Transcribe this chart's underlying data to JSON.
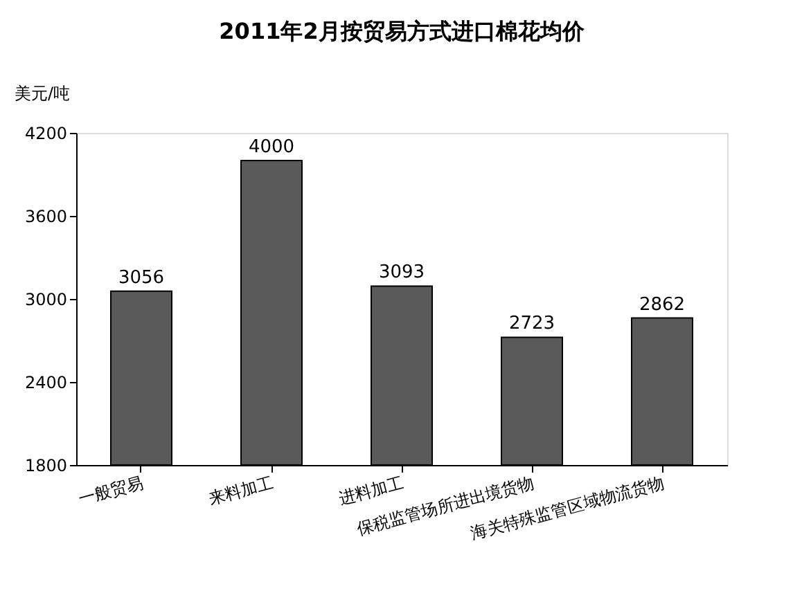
{
  "chart_data": {
    "type": "bar",
    "title": "2011年2月按贸易方式进口棉花均价",
    "ylabel": "美元/吨",
    "categories": [
      "一般贸易",
      "来料加工",
      "进料加工",
      "保税监管场所进出境货物",
      "海关特殊监管区域物流货物"
    ],
    "values": [
      3056,
      4000,
      3093,
      2723,
      2862
    ],
    "color": "#5a5a5a",
    "ylim": [
      1800,
      4200
    ],
    "yticks": [
      1800,
      2400,
      3000,
      3600,
      4200
    ],
    "grid": false,
    "data_labels": true
  }
}
